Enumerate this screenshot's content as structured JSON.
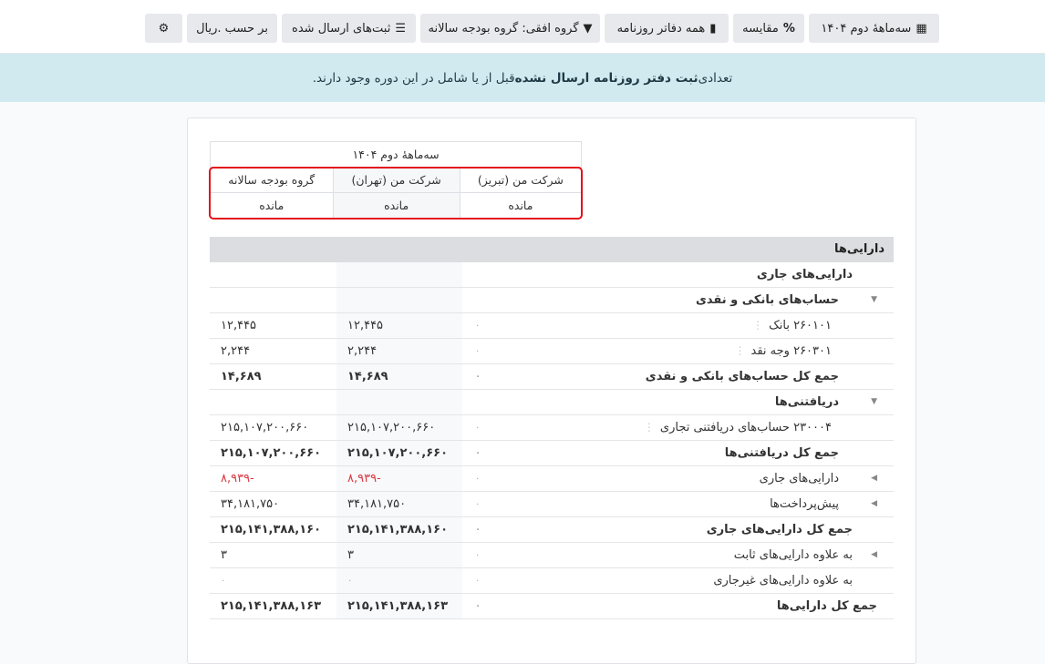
{
  "toolbar": {
    "period": "سه‌ماههٔ دوم ۱۴۰۴",
    "compare": "مقایسه",
    "journals": "همه دفاتر روزنامه",
    "horizontal_group": "گروه افقی: گروه بودجه سالانه",
    "posted": "ثبت‌های ارسال شده",
    "currency": "بر حسب .ریال"
  },
  "alert": {
    "before": "تعدادی ",
    "bold": "ثبت دفتر روزنامه ارسال نشده",
    "after": " قبل از یا شامل در این دوره وجود دارند."
  },
  "header": {
    "period": "سه‌ماههٔ دوم ۱۴۰۴",
    "columns": [
      "شرکت من (تبریز)",
      "شرکت من (تهران)",
      "گروه بودجه سالانه"
    ],
    "sub": [
      "مانده",
      "مانده",
      "مانده"
    ]
  },
  "colors": {
    "negative": "#d9363e",
    "highlight_border": "#e3101b",
    "alert_bg": "#d0eaf0"
  },
  "section": "دارایی‌ها",
  "rows": [
    {
      "label": "دارایی‌های جاری",
      "level": 1,
      "bold": true,
      "values": [
        "",
        "",
        ""
      ]
    },
    {
      "label": "حساب‌های بانکی و نقدی",
      "level": 2,
      "caret": "down",
      "bold": true,
      "values": [
        "",
        "",
        ""
      ]
    },
    {
      "label": "۲۶۰۱۰۱ بانک",
      "level": 3,
      "dots": true,
      "values": [
        "۰",
        "۱۲,۴۴۵",
        "۱۲,۴۴۵"
      ]
    },
    {
      "label": "۲۶۰۳۰۱ وجه نقد",
      "level": 3,
      "dots": true,
      "values": [
        "۰",
        "۲,۲۴۴",
        "۲,۲۴۴"
      ]
    },
    {
      "label": "جمع کل حساب‌های بانکی و نقدی",
      "level": 2,
      "bold": true,
      "values": [
        "۰",
        "۱۴,۶۸۹",
        "۱۴,۶۸۹"
      ]
    },
    {
      "label": "دریافتنی‌ها",
      "level": 2,
      "caret": "down",
      "bold": true,
      "values": [
        "",
        "",
        ""
      ]
    },
    {
      "label": "۲۳۰۰۰۴ حساب‌های دریافتنی تجاری",
      "level": 3,
      "dots": true,
      "values": [
        "۰",
        "۲۱۵,۱۰۷,۲۰۰,۶۶۰",
        "۲۱۵,۱۰۷,۲۰۰,۶۶۰"
      ]
    },
    {
      "label": "جمع کل دریافتنی‌ها",
      "level": 2,
      "bold": true,
      "values": [
        "۰",
        "۲۱۵,۱۰۷,۲۰۰,۶۶۰",
        "۲۱۵,۱۰۷,۲۰۰,۶۶۰"
      ]
    },
    {
      "label": "دارایی‌های جاری",
      "level": 2,
      "caret": "left",
      "negative": true,
      "values": [
        "۰",
        "۸,۹۳۹-",
        "۸,۹۳۹-"
      ]
    },
    {
      "label": "پیش‌پرداخت‌ها",
      "level": 2,
      "caret": "left",
      "values": [
        "۰",
        "۳۴,۱۸۱,۷۵۰",
        "۳۴,۱۸۱,۷۵۰"
      ]
    },
    {
      "label": "جمع کل دارایی‌های جاری",
      "level": 1,
      "bold": true,
      "values": [
        "۰",
        "۲۱۵,۱۴۱,۳۸۸,۱۶۰",
        "۲۱۵,۱۴۱,۳۸۸,۱۶۰"
      ]
    },
    {
      "label": "به علاوه دارایی‌های ثابت",
      "level": 1,
      "caret": "left",
      "values": [
        "۰",
        "۳",
        "۳"
      ]
    },
    {
      "label": "به علاوه دارایی‌های غیرجاری",
      "level": 1,
      "values": [
        "۰",
        "۰",
        "۰"
      ]
    },
    {
      "label": "جمع کل دارایی‌ها",
      "level": 0,
      "bold": true,
      "values": [
        "۰",
        "۲۱۵,۱۴۱,۳۸۸,۱۶۳",
        "۲۱۵,۱۴۱,۳۸۸,۱۶۳"
      ]
    }
  ]
}
